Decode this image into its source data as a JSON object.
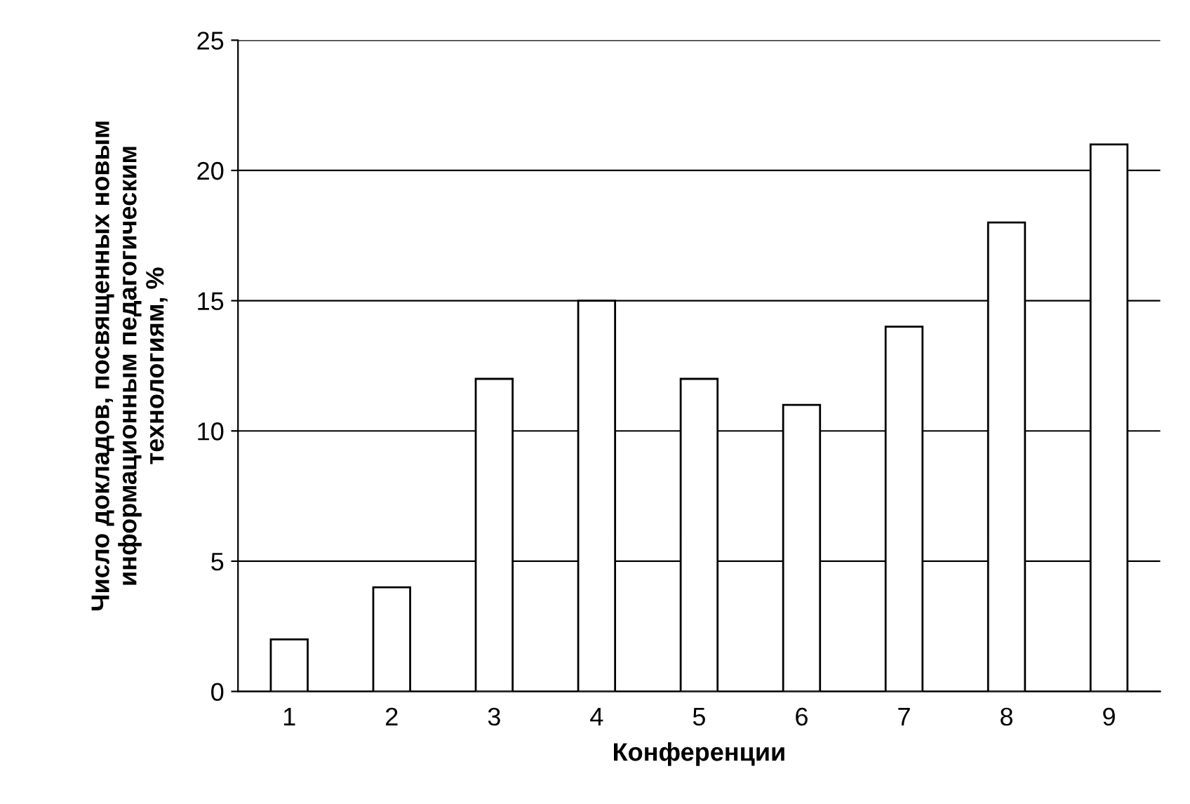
{
  "chart_data": {
    "type": "bar",
    "xlabel": "Конференции",
    "ylabel": "Число докладов, посвященных новым\nинформационным педагогическим\nтехнологиям, %",
    "categories": [
      "1",
      "2",
      "3",
      "4",
      "5",
      "6",
      "7",
      "8",
      "9"
    ],
    "values": [
      2,
      4,
      12,
      15,
      12,
      11,
      14,
      18,
      21
    ],
    "color": "#ffffff",
    "ylim": [
      0,
      25
    ],
    "yticks": [
      0,
      5,
      10,
      15,
      20,
      25
    ],
    "grid": "y",
    "legend": false
  }
}
